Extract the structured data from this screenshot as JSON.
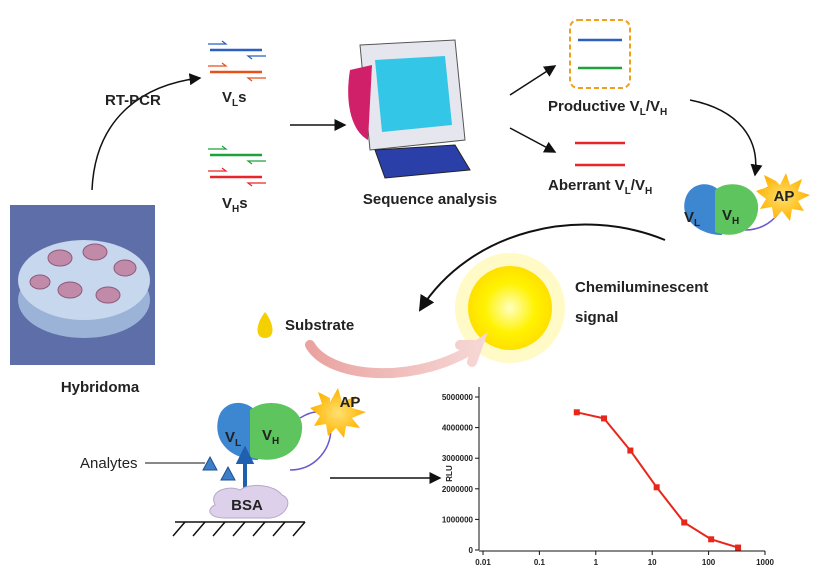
{
  "labels": {
    "rt_pcr": "RT-PCR",
    "vl_primers": [
      "V",
      "L",
      "s"
    ],
    "vh_primers": [
      "V",
      "H",
      "s"
    ],
    "sequence_analysis": "Sequence analysis",
    "productive": [
      "Productive V",
      "L",
      "/V",
      "H"
    ],
    "aberrant": [
      "Aberrant V",
      "L",
      "/V",
      "H"
    ],
    "hybridoma": "Hybridoma",
    "vl_top": [
      "V",
      "L"
    ],
    "vh_top": [
      "V",
      "H"
    ],
    "ap_top": "AP",
    "signal": [
      "Chemiluminescent",
      "signal"
    ],
    "substrate": "Substrate",
    "vl_bottom": [
      "V",
      "L"
    ],
    "vh_bottom": [
      "V",
      "H"
    ],
    "ap_bottom": "AP",
    "analytes": "Analytes",
    "bsa": "BSA"
  },
  "chart_data": {
    "type": "line",
    "x": [
      0.46,
      1.4,
      4.1,
      12,
      37,
      111,
      333
    ],
    "values": [
      4500000,
      4300000,
      3250000,
      2050000,
      900000,
      350000,
      80000
    ],
    "color": "#e8261a",
    "ylabel": "RLU",
    "xscale": "log",
    "xlim": [
      0.01,
      1000
    ],
    "xticks": [
      0.01,
      0.1,
      1,
      10,
      100,
      1000
    ],
    "ylim": [
      0,
      5000000
    ],
    "yticks": [
      0,
      1000000,
      2000000,
      3000000,
      4000000,
      5000000
    ]
  }
}
